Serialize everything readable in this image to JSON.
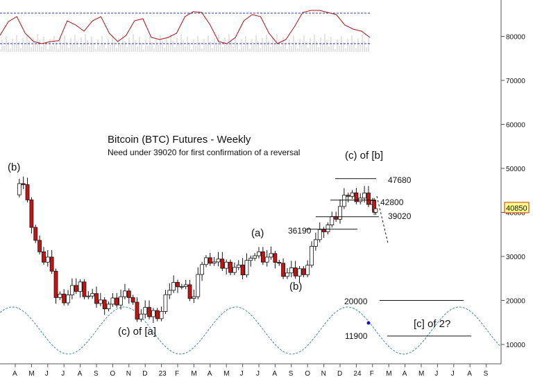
{
  "chart_data": {
    "type": "candlestick",
    "title": "Bitcoin (BTC) Futures - Weekly",
    "subtitle": "Need under 39020 for first confirmation of a reversal",
    "xlabel": "",
    "ylabel": "",
    "ylim": [
      4000,
      88000
    ],
    "y_ticks": [
      "10000",
      "20000",
      "30000",
      "40000",
      "50000",
      "60000",
      "70000",
      "80000"
    ],
    "y_tick_values": [
      10000,
      20000,
      30000,
      40000,
      50000,
      60000,
      70000,
      80000
    ],
    "x_ticks": [
      "A",
      "M",
      "J",
      "J",
      "A",
      "S",
      "O",
      "N",
      "D",
      "23",
      "F",
      "M",
      "A",
      "M",
      "J",
      "J",
      "A",
      "S",
      "O",
      "N",
      "D",
      "24",
      "F",
      "M",
      "A",
      "M",
      "J",
      "J",
      "A",
      "S"
    ],
    "x_tick_months": [
      0,
      1,
      2,
      3,
      4,
      5,
      6,
      7,
      8,
      9,
      10,
      11,
      12,
      13,
      14,
      15,
      16,
      17,
      18,
      19,
      20,
      21,
      22,
      23,
      24,
      25,
      26,
      27,
      28,
      29
    ],
    "last_price": "40850",
    "last_price_value": 40850,
    "candles_monthly_closes": [
      [
        0,
        44000
      ],
      [
        0.5,
        47000
      ],
      [
        1,
        38000
      ],
      [
        1.5,
        30000
      ],
      [
        2,
        29500
      ],
      [
        2.5,
        21000
      ],
      [
        3,
        20500
      ],
      [
        3.5,
        22000
      ],
      [
        4,
        23500
      ],
      [
        4.5,
        21000
      ],
      [
        5,
        20000
      ],
      [
        5.5,
        19500
      ],
      [
        6,
        19500
      ],
      [
        6.5,
        20500
      ],
      [
        7,
        21000
      ],
      [
        7.5,
        16800
      ],
      [
        8,
        17000
      ],
      [
        8.5,
        17000
      ],
      [
        9,
        17500
      ],
      [
        9.5,
        23000
      ],
      [
        10,
        24500
      ],
      [
        10.5,
        22500
      ],
      [
        11,
        20500
      ],
      [
        11.5,
        28500
      ],
      [
        12,
        29500
      ],
      [
        12.5,
        28000
      ],
      [
        13,
        28000
      ],
      [
        13.5,
        27500
      ],
      [
        14,
        26500
      ],
      [
        14.5,
        31000
      ],
      [
        15,
        30000
      ],
      [
        15.5,
        29500
      ],
      [
        16,
        29000
      ],
      [
        16.5,
        26500
      ],
      [
        17,
        26000
      ],
      [
        17.5,
        26500
      ],
      [
        18,
        28000
      ],
      [
        18.5,
        34500
      ],
      [
        19,
        37000
      ],
      [
        19.5,
        38000
      ],
      [
        20,
        41000
      ],
      [
        20.5,
        44000
      ],
      [
        21,
        43500
      ],
      [
        21.5,
        43000
      ],
      [
        22,
        42000
      ],
      [
        22.2,
        40850
      ]
    ],
    "upper_indicator": {
      "levels": [
        "upper dashed line",
        "lower dashed line"
      ],
      "values_0_100": [
        35,
        68,
        80,
        40,
        20,
        15,
        20,
        22,
        70,
        60,
        45,
        70,
        80,
        40,
        20,
        35,
        70,
        75,
        30,
        25,
        30,
        40,
        80,
        92,
        90,
        60,
        20,
        15,
        30,
        70,
        85,
        80,
        40,
        15,
        25,
        55,
        90,
        95,
        95,
        90,
        85,
        60,
        50,
        45,
        30
      ]
    },
    "cycle_curve": {
      "style": "dashed sine",
      "color": "#3a8a9a",
      "marker_color": "#1010c0"
    },
    "wave_labels": [
      "(b)",
      "(c) of [a]",
      "(a)",
      "(b)",
      "(c) of [b]",
      "[c] of 2?"
    ],
    "level_labels": [
      "47680",
      "42800",
      "39020",
      "36190",
      "20000",
      "11900"
    ],
    "level_values": [
      47680,
      42800,
      39020,
      36190,
      20000,
      11900
    ],
    "colors": {
      "up_candle": "#ffffff",
      "down_candle": "#cc1111",
      "indicator_line": "#aa1111",
      "indicator_bars": "#c8c8c8",
      "dashed_level": "#2233bb",
      "price_box_border": "#cc3300",
      "price_box_fill": "#ffff88"
    }
  }
}
